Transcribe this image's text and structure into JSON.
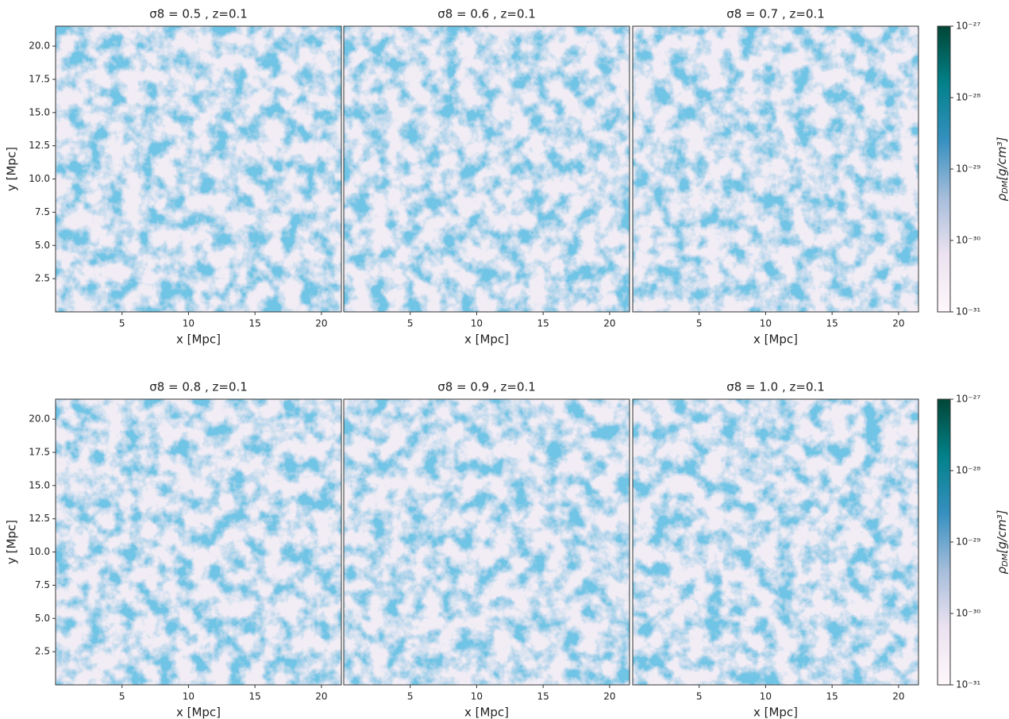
{
  "chart_data": [
    {
      "type": "image",
      "title": "σ8 = 0.5 , z=0.1",
      "xlabel": "x [Mpc]",
      "ylabel": "y [Mpc]",
      "xlim": [
        0,
        21.5
      ],
      "ylim": [
        0,
        21.5
      ],
      "xticks": [
        5,
        10,
        15,
        20
      ],
      "yticks": [
        2.5,
        {
          "value": 5,
          "label": "5.0"
        },
        7.5,
        {
          "value": 10,
          "label": "10.0"
        },
        12.5,
        {
          "value": 15,
          "label": "15.0"
        },
        17.5,
        {
          "value": 20,
          "label": "20.0"
        }
      ]
    },
    {
      "type": "image",
      "title": "σ8 = 0.6 , z=0.1",
      "xlabel": "x [Mpc]",
      "xlim": [
        0,
        21.5
      ],
      "ylim": [
        0,
        21.5
      ],
      "xticks": [
        5,
        10,
        15,
        20
      ]
    },
    {
      "type": "image",
      "title": "σ8 = 0.7 , z=0.1",
      "xlabel": "x [Mpc]",
      "xlim": [
        0,
        21.5
      ],
      "ylim": [
        0,
        21.5
      ],
      "xticks": [
        5,
        10,
        15,
        20
      ]
    },
    {
      "type": "image",
      "title": "σ8 = 0.8 , z=0.1",
      "xlabel": "x [Mpc]",
      "ylabel": "y [Mpc]",
      "xlim": [
        0,
        21.5
      ],
      "ylim": [
        0,
        21.5
      ],
      "xticks": [
        5,
        10,
        15,
        20
      ],
      "yticks": [
        2.5,
        {
          "value": 5,
          "label": "5.0"
        },
        7.5,
        {
          "value": 10,
          "label": "10.0"
        },
        12.5,
        {
          "value": 15,
          "label": "15.0"
        },
        17.5,
        {
          "value": 20,
          "label": "20.0"
        }
      ]
    },
    {
      "type": "image",
      "title": "σ8 = 0.9 , z=0.1",
      "xlabel": "x [Mpc]",
      "xlim": [
        0,
        21.5
      ],
      "ylim": [
        0,
        21.5
      ],
      "xticks": [
        5,
        10,
        15,
        20
      ]
    },
    {
      "type": "image",
      "title": "σ8 = 1.0 , z=0.1",
      "xlabel": "x [Mpc]",
      "xlim": [
        0,
        21.5
      ],
      "ylim": [
        0,
        21.5
      ],
      "xticks": [
        5,
        10,
        15,
        20
      ]
    },
    {
      "type": "colorbar",
      "log_scale": true,
      "label": {
        "symbol": "ρ",
        "subscript": "DM",
        "unit": "[g/cm³]"
      },
      "colors": [
        "#fff7fb",
        "#ece2f0",
        "#a6bddb",
        "#3690c0",
        "#02818a",
        "#014636"
      ],
      "ylim": [
        1e-31,
        1e-27
      ],
      "yticks": [
        {
          "value": 1e-31,
          "label": "10⁻³¹"
        },
        {
          "value": 1e-30,
          "label": "10⁻³⁰"
        },
        {
          "value": 1e-29,
          "label": "10⁻²⁹"
        },
        {
          "value": 1e-28,
          "label": "10⁻²⁸"
        },
        {
          "value": 1e-27,
          "label": "10⁻²⁷"
        }
      ]
    },
    {
      "type": "colorbar",
      "log_scale": true,
      "label": {
        "symbol": "ρ",
        "subscript": "DM",
        "unit": "[g/cm³]"
      },
      "colors": [
        "#fff7fb",
        "#ece2f0",
        "#a6bddb",
        "#3690c0",
        "#02818a",
        "#014636"
      ],
      "ylim": [
        1e-31,
        1e-27
      ],
      "yticks": [
        {
          "value": 1e-31,
          "label": "10⁻³¹"
        },
        {
          "value": 1e-30,
          "label": "10⁻³⁰"
        },
        {
          "value": 1e-29,
          "label": "10⁻²⁹"
        },
        {
          "value": 1e-28,
          "label": "10⁻²⁸"
        },
        {
          "value": 1e-27,
          "label": "10⁻²⁷"
        }
      ]
    }
  ]
}
